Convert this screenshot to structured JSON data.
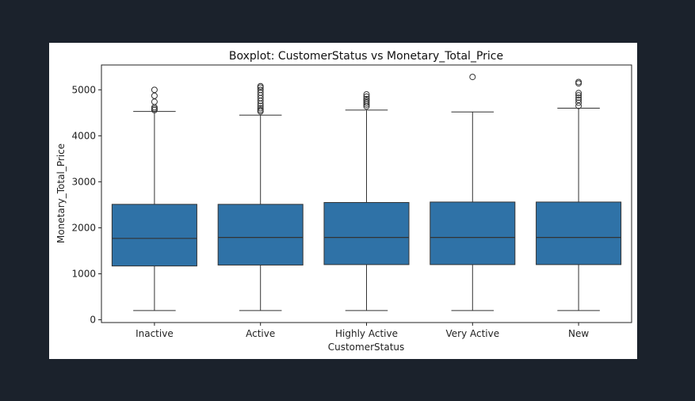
{
  "chart_data": {
    "type": "boxplot",
    "title": "Boxplot: CustomerStatus vs Monetary_Total_Price",
    "xlabel": "CustomerStatus",
    "ylabel": "Monetary_Total_Price",
    "categories": [
      "Inactive",
      "Active",
      "Highly Active",
      "Very Active",
      "New"
    ],
    "ylim": [
      -60,
      5540
    ],
    "yticks": [
      0,
      1000,
      2000,
      3000,
      4000,
      5000
    ],
    "grid": false,
    "box_color": "#2f72a7",
    "series": [
      {
        "category": "Inactive",
        "whisker_low": 200,
        "q1": 1170,
        "median": 1770,
        "q3": 2510,
        "whisker_high": 4530,
        "outliers": [
          4560,
          4590,
          4620,
          4740,
          4870,
          5000
        ]
      },
      {
        "category": "Active",
        "whisker_low": 200,
        "q1": 1190,
        "median": 1790,
        "q3": 2510,
        "whisker_high": 4450,
        "outliers": [
          4530,
          4560,
          4600,
          4650,
          4700,
          4760,
          4820,
          4880,
          4940,
          5000,
          5050,
          5080
        ]
      },
      {
        "category": "Highly Active",
        "whisker_low": 200,
        "q1": 1200,
        "median": 1790,
        "q3": 2550,
        "whisker_high": 4560,
        "outliers": [
          4640,
          4680,
          4720,
          4760,
          4800,
          4850,
          4900
        ]
      },
      {
        "category": "Very Active",
        "whisker_low": 200,
        "q1": 1200,
        "median": 1790,
        "q3": 2560,
        "whisker_high": 4520,
        "outliers": [
          5280
        ]
      },
      {
        "category": "New",
        "whisker_low": 200,
        "q1": 1200,
        "median": 1790,
        "q3": 2560,
        "whisker_high": 4600,
        "outliers": [
          4650,
          4720,
          4780,
          4830,
          4880,
          4930,
          5140,
          5170
        ]
      }
    ]
  }
}
